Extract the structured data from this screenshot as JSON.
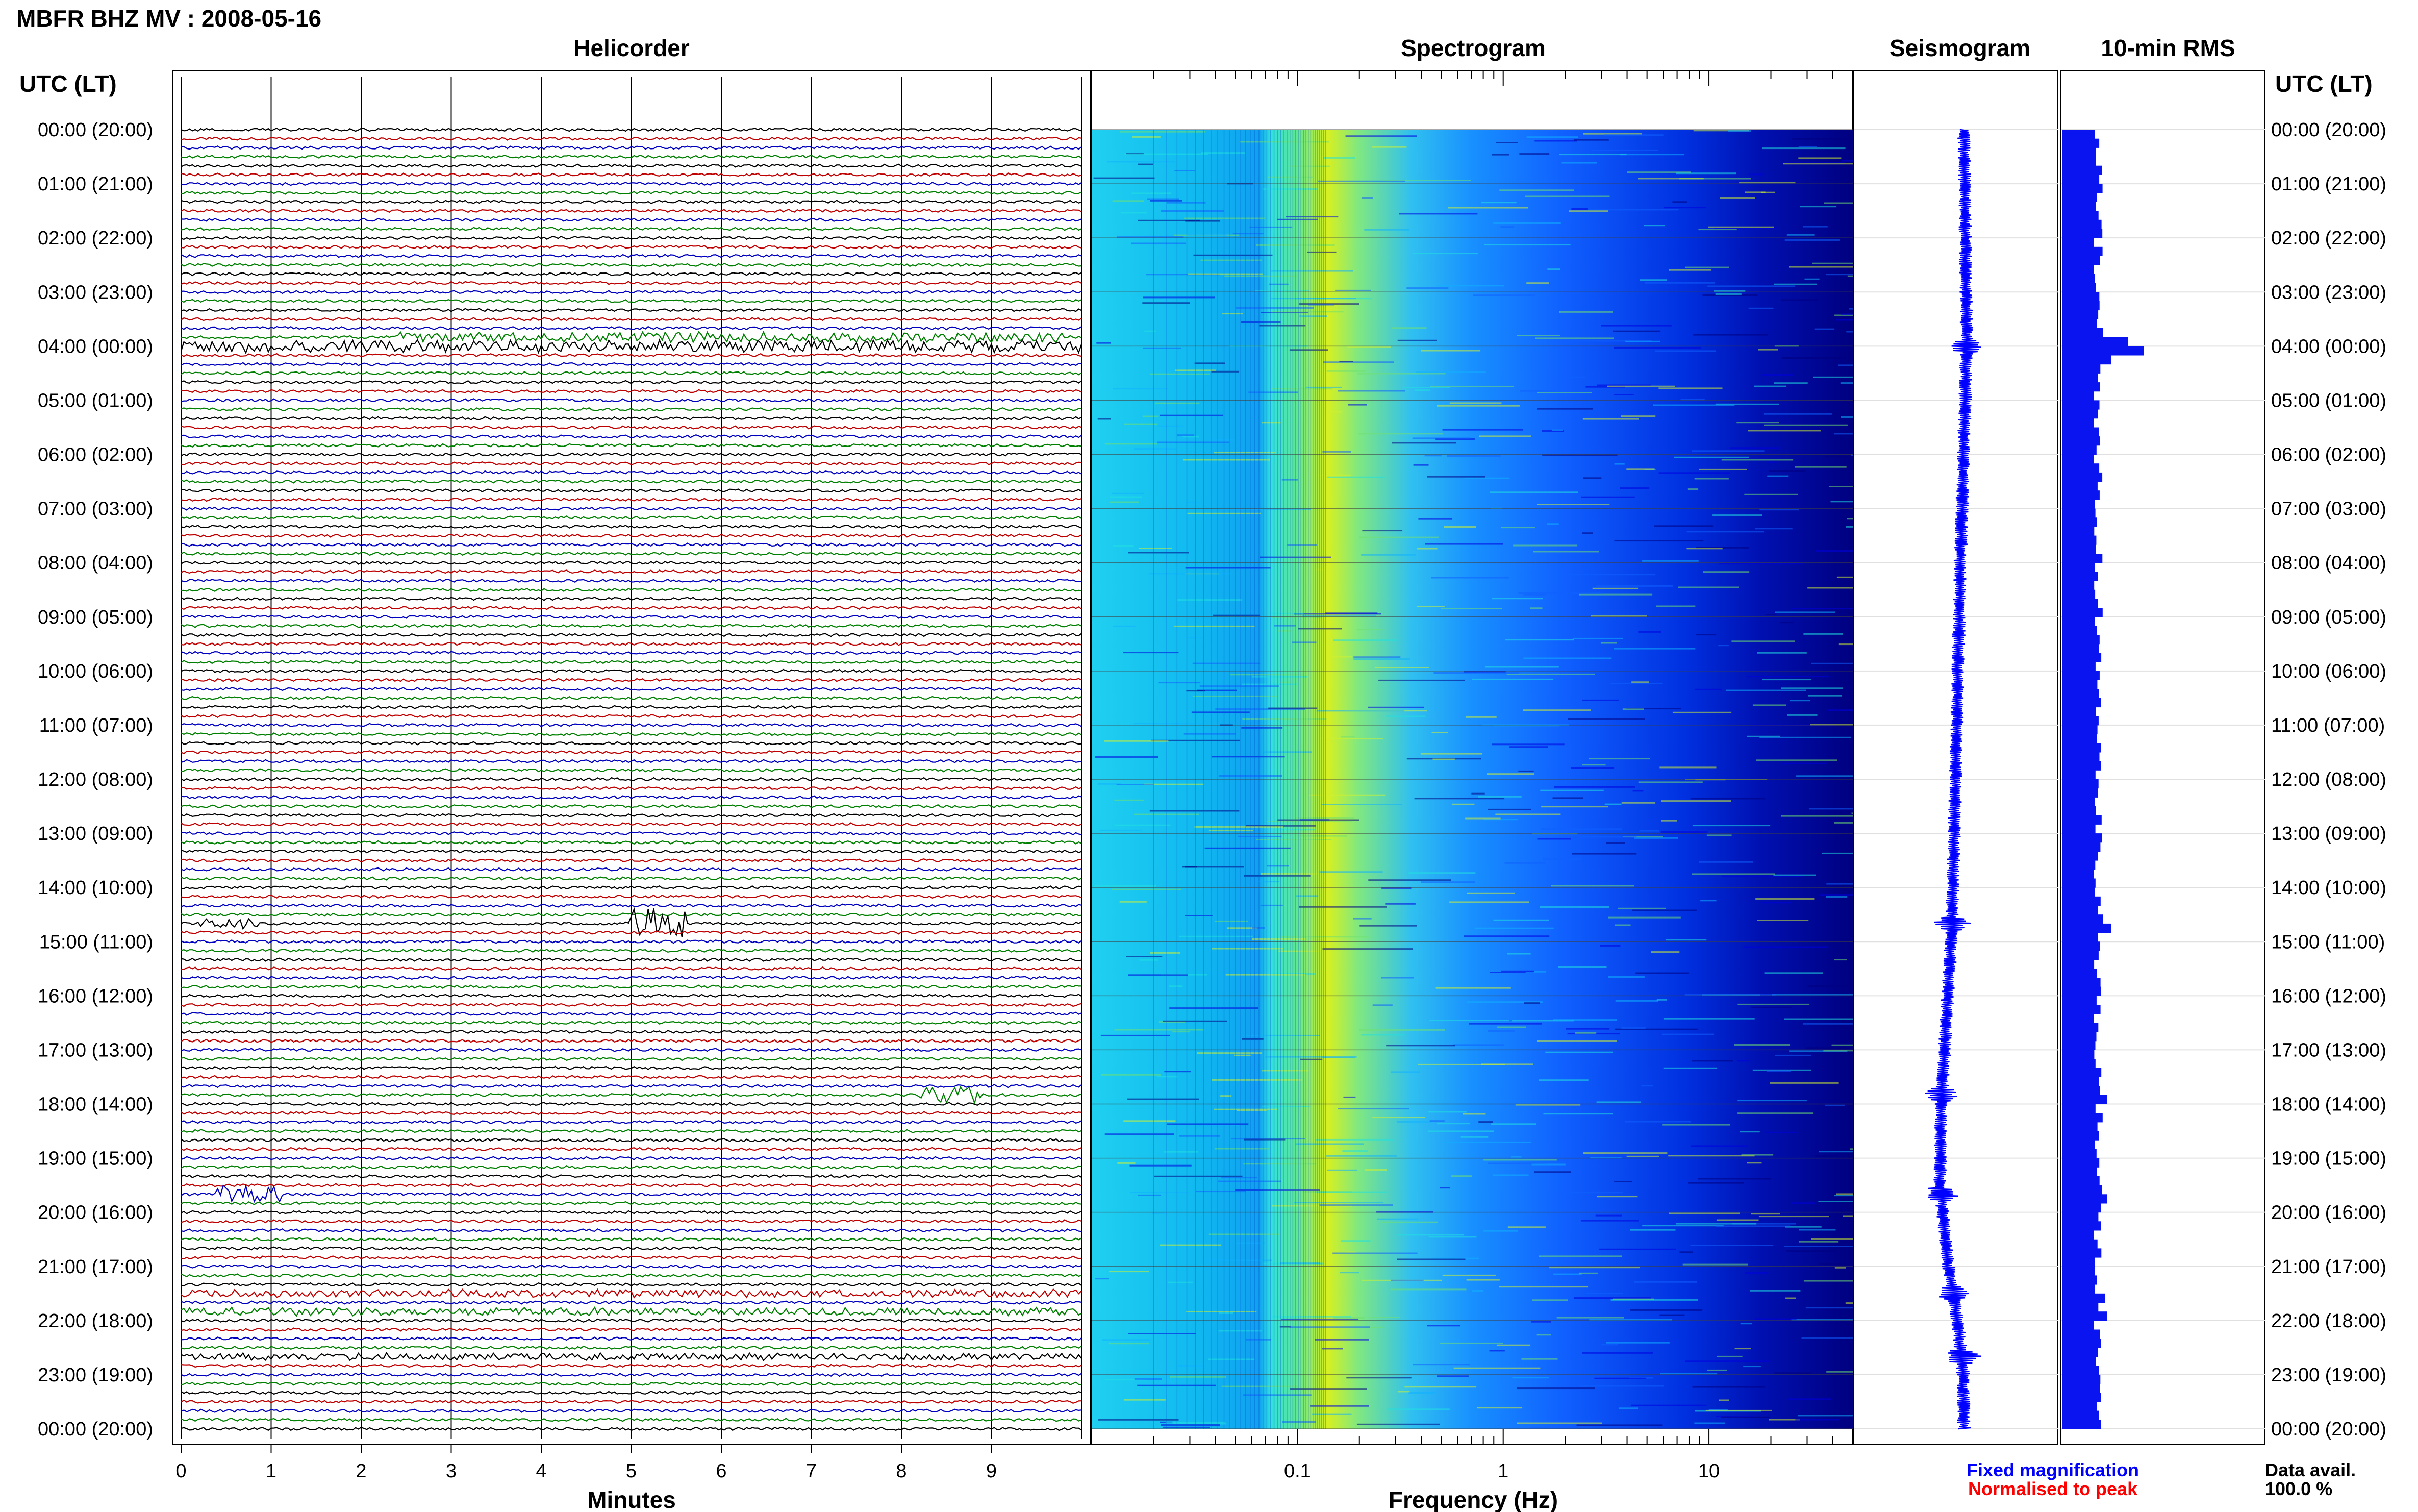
{
  "header": {
    "title": "MBFR BHZ MV : 2008-05-16"
  },
  "panels": {
    "helicorder": "Helicorder",
    "spectrogram": "Spectrogram",
    "seismogram": "Seismogram",
    "rms": "10-min RMS"
  },
  "time_axis": {
    "left_title": "UTC (LT)",
    "right_title": "UTC (LT)",
    "hours": [
      "00:00 (20:00)",
      "01:00 (21:00)",
      "02:00 (22:00)",
      "03:00 (23:00)",
      "04:00 (00:00)",
      "05:00 (01:00)",
      "06:00 (02:00)",
      "07:00 (03:00)",
      "08:00 (04:00)",
      "09:00 (05:00)",
      "10:00 (06:00)",
      "11:00 (07:00)",
      "12:00 (08:00)",
      "13:00 (09:00)",
      "14:00 (10:00)",
      "15:00 (11:00)",
      "16:00 (12:00)",
      "17:00 (13:00)",
      "18:00 (14:00)",
      "19:00 (15:00)",
      "20:00 (16:00)",
      "21:00 (17:00)",
      "22:00 (18:00)",
      "23:00 (19:00)",
      "00:00 (20:00)"
    ]
  },
  "legend": {
    "fixed": "Fixed magnification",
    "normalised": "Normalised to peak",
    "data_avail_label": "Data avail.",
    "data_avail_value": "100.0 %",
    "fixed_color": "#0000ff",
    "normalised_color": "#ff0000"
  },
  "chart_data": [
    {
      "type": "line",
      "name": "helicorder",
      "xlabel": "Minutes",
      "xticks": [
        "0",
        "1",
        "2",
        "3",
        "4",
        "5",
        "6",
        "7",
        "8",
        "9"
      ],
      "xlim": [
        0,
        10
      ],
      "rows_per_hour": 6,
      "hours": 24,
      "trace_colors": [
        "#000000",
        "#c00000",
        "#0000c0",
        "#008000"
      ],
      "events": [
        {
          "hour": 4.0,
          "minute_start": 0.0,
          "minute_end": 10.0,
          "amp": 0.55
        },
        {
          "hour": 14.67,
          "minute_start": 5.0,
          "minute_end": 5.6,
          "amp": 1.6
        },
        {
          "hour": 14.67,
          "minute_start": 0.2,
          "minute_end": 0.9,
          "amp": 0.5
        },
        {
          "hour": 19.67,
          "minute_start": 0.4,
          "minute_end": 1.1,
          "amp": 0.9
        },
        {
          "hour": 17.83,
          "minute_start": 8.2,
          "minute_end": 8.9,
          "amp": 0.8
        },
        {
          "hour": 3.83,
          "minute_start": 2.4,
          "minute_end": 9.8,
          "amp": 0.45
        },
        {
          "hour": 21.5,
          "minute_start": 0.0,
          "minute_end": 10.0,
          "amp": 0.3
        },
        {
          "hour": 21.83,
          "minute_start": 0.0,
          "minute_end": 10.0,
          "amp": 0.3
        },
        {
          "hour": 22.67,
          "minute_start": 0.0,
          "minute_end": 10.0,
          "amp": 0.25
        }
      ]
    },
    {
      "type": "heatmap",
      "name": "spectrogram",
      "xlabel": "Frequency (Hz)",
      "xscale": "log",
      "xlim": [
        0.01,
        50
      ],
      "xticks": [
        "0.1",
        "1",
        "10"
      ],
      "xtick_values": [
        0.1,
        1,
        10
      ],
      "ylim": [
        0,
        24
      ],
      "peak_frequency_hz": 0.25,
      "colormap": [
        "#000080",
        "#0000e0",
        "#1060ff",
        "#10b0ff",
        "#20e0e0",
        "#70e070",
        "#d0f030"
      ]
    },
    {
      "type": "line",
      "name": "seismogram",
      "ylim": [
        0,
        24
      ],
      "drift_points": [
        [
          0,
          0
        ],
        [
          3,
          -0.2
        ],
        [
          4,
          -0.3
        ],
        [
          8,
          0.4
        ],
        [
          12,
          0.9
        ],
        [
          15,
          1.4
        ],
        [
          18,
          2.5
        ],
        [
          19.5,
          2.6
        ],
        [
          21,
          1.7
        ],
        [
          22,
          0.7
        ],
        [
          23,
          0.1
        ],
        [
          24,
          0
        ]
      ],
      "bursts_hours": [
        4.0,
        14.67,
        19.67,
        17.83,
        21.5,
        22.67
      ]
    },
    {
      "type": "bar",
      "name": "rms",
      "orientation": "horizontal",
      "bin_minutes": 10,
      "ylim": [
        0,
        24
      ],
      "base_value": 0.45,
      "peaks": [
        {
          "hour": 3.83,
          "value": 0.8
        },
        {
          "hour": 4.0,
          "value": 1.0
        },
        {
          "hour": 4.17,
          "value": 0.6
        },
        {
          "hour": 14.67,
          "value": 0.6
        },
        {
          "hour": 17.83,
          "value": 0.55
        },
        {
          "hour": 19.67,
          "value": 0.55
        },
        {
          "hour": 21.5,
          "value": 0.52
        },
        {
          "hour": 21.83,
          "value": 0.55
        }
      ]
    }
  ]
}
